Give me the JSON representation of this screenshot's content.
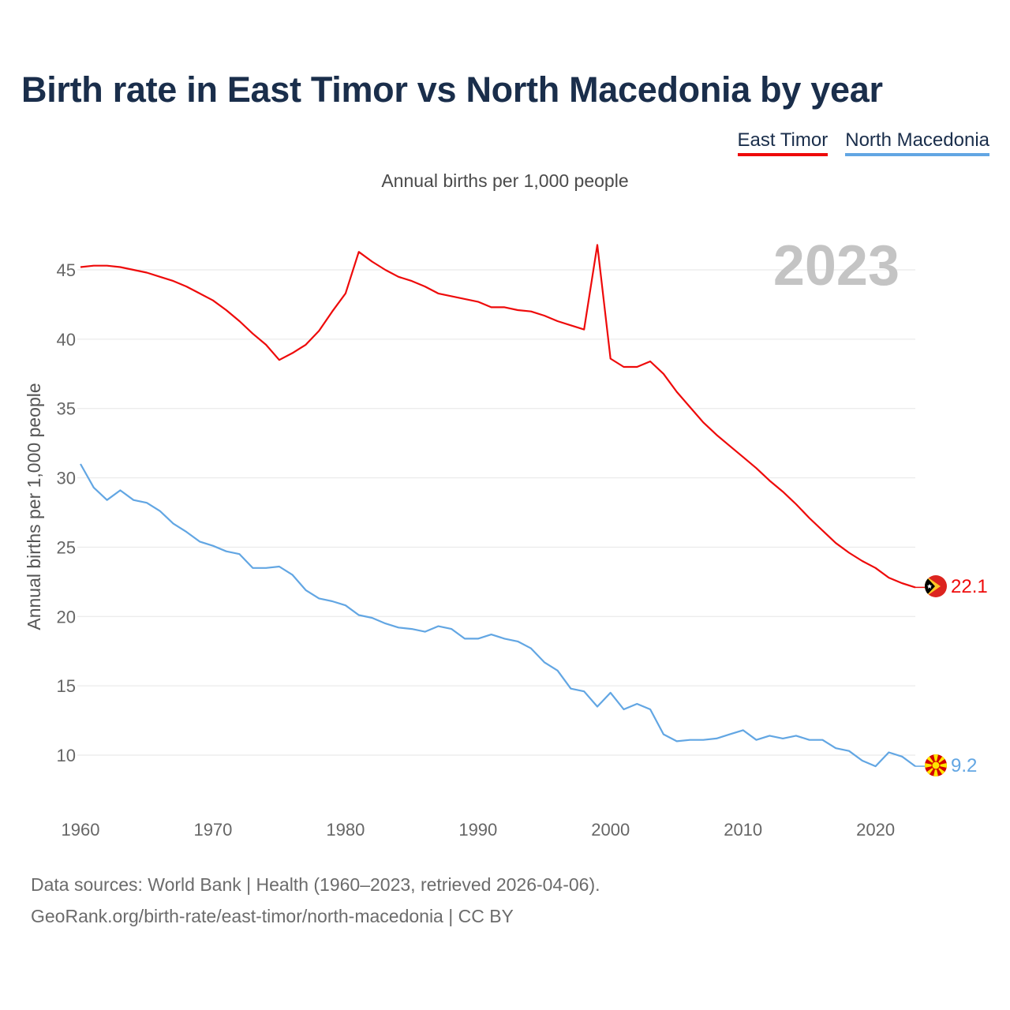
{
  "title": "Birth rate in East Timor vs North Macedonia by year",
  "subtitle": "Annual births per 1,000 people",
  "legend": [
    "East Timor",
    "North Macedonia"
  ],
  "year_label": "2023",
  "footer": {
    "line1": "Data sources: World Bank | Health (1960–2023, retrieved 2026-04-06).",
    "line2": "GeoRank.org/birth-rate/east-timor/north-macedonia | CC BY"
  },
  "colors": {
    "east_timor": "#ee0a0a",
    "north_macedonia": "#62a6e3",
    "title": "#1a2e4b"
  },
  "chart_data": {
    "type": "line",
    "title": "Birth rate in East Timor vs North Macedonia by year",
    "xlabel": "",
    "ylabel": "Annual births per 1,000 people",
    "xlim": [
      1960,
      2023
    ],
    "ylim": [
      7,
      48
    ],
    "yticks": [
      10,
      15,
      20,
      25,
      30,
      35,
      40,
      45
    ],
    "xticks": [
      1960,
      1970,
      1980,
      1990,
      2000,
      2010,
      2020
    ],
    "grid": true,
    "legend_position": "top-right",
    "x": [
      1960,
      1961,
      1962,
      1963,
      1964,
      1965,
      1966,
      1967,
      1968,
      1969,
      1970,
      1971,
      1972,
      1973,
      1974,
      1975,
      1976,
      1977,
      1978,
      1979,
      1980,
      1981,
      1982,
      1983,
      1984,
      1985,
      1986,
      1987,
      1988,
      1989,
      1990,
      1991,
      1992,
      1993,
      1994,
      1995,
      1996,
      1997,
      1998,
      1999,
      2000,
      2001,
      2002,
      2003,
      2004,
      2005,
      2006,
      2007,
      2008,
      2009,
      2010,
      2011,
      2012,
      2013,
      2014,
      2015,
      2016,
      2017,
      2018,
      2019,
      2020,
      2021,
      2022,
      2023
    ],
    "series": [
      {
        "name": "East Timor",
        "end_label": "22.1",
        "values": [
          45.2,
          45.3,
          45.3,
          45.2,
          45.0,
          44.8,
          44.5,
          44.2,
          43.8,
          43.3,
          42.8,
          42.1,
          41.3,
          40.4,
          39.6,
          38.5,
          39.0,
          39.6,
          40.6,
          42.0,
          43.3,
          46.3,
          45.6,
          45.0,
          44.5,
          44.2,
          43.8,
          43.3,
          43.1,
          42.9,
          42.7,
          42.3,
          42.3,
          42.1,
          42.0,
          41.7,
          41.3,
          41.0,
          40.7,
          46.8,
          38.6,
          38.0,
          38.0,
          38.4,
          37.5,
          36.2,
          35.1,
          34.0,
          33.1,
          32.3,
          31.5,
          30.7,
          29.8,
          29.0,
          28.1,
          27.1,
          26.2,
          25.3,
          24.6,
          24.0,
          23.5,
          22.8,
          22.4,
          22.1
        ]
      },
      {
        "name": "North Macedonia",
        "end_label": "9.2",
        "values": [
          31.0,
          29.3,
          28.4,
          29.1,
          28.4,
          28.2,
          27.6,
          26.7,
          26.1,
          25.4,
          25.1,
          24.7,
          24.5,
          23.5,
          23.5,
          23.6,
          23.0,
          21.9,
          21.3,
          21.1,
          20.8,
          20.1,
          19.9,
          19.5,
          19.2,
          19.1,
          18.9,
          19.3,
          19.1,
          18.4,
          18.4,
          18.7,
          18.4,
          18.2,
          17.7,
          16.7,
          16.1,
          14.8,
          14.6,
          13.5,
          14.5,
          13.3,
          13.7,
          13.3,
          11.5,
          11.0,
          11.1,
          11.1,
          11.2,
          11.5,
          11.8,
          11.1,
          11.4,
          11.2,
          11.4,
          11.1,
          11.1,
          10.5,
          10.3,
          9.6,
          9.2,
          10.2,
          9.9,
          9.2
        ]
      }
    ]
  }
}
